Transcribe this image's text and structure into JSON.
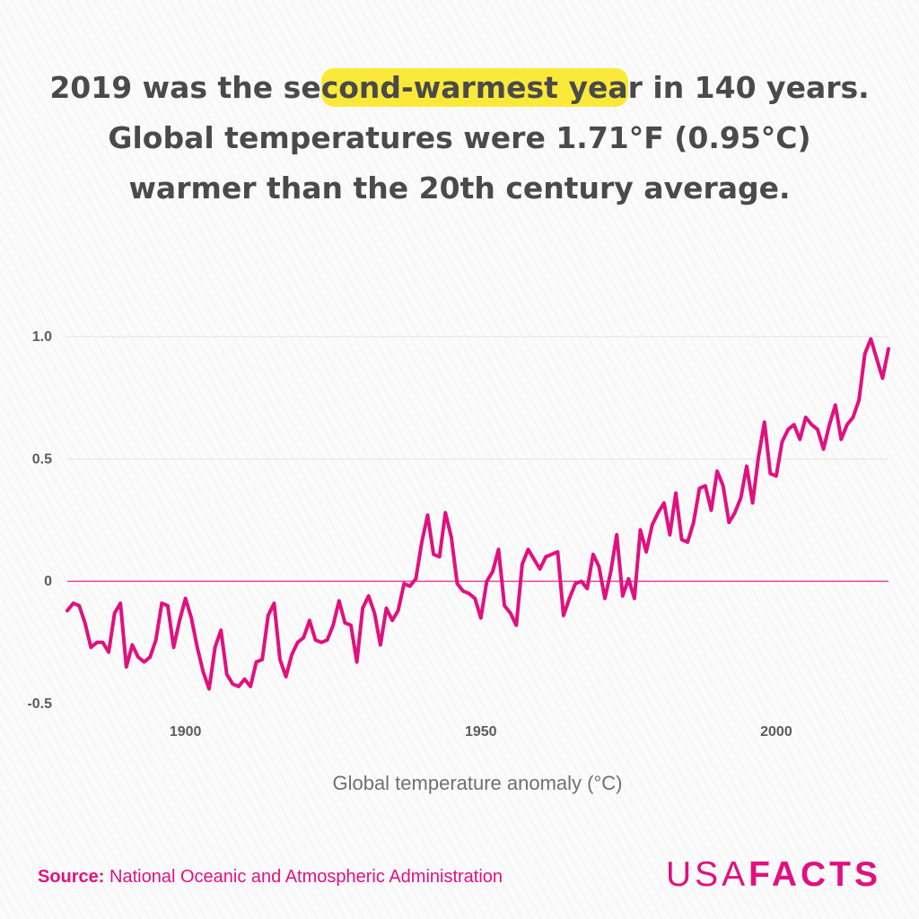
{
  "headline": {
    "line1_pre": "2019 was the se",
    "line1_highlight": "cond-warmest yea",
    "line1_post": "r in 140 years.",
    "line2": "Global temperatures were 1.71°F (0.95°C)",
    "line3": "warmer than the 20th century average."
  },
  "colors": {
    "series": "#e0117f",
    "highlight": "#fbe93a",
    "text": "#4a4a4a",
    "grid": "#e2e2e2"
  },
  "chart_data": {
    "type": "line",
    "xlabel": "Global temperature anomaly (°C)",
    "ylabel": "",
    "xlim": [
      1880,
      2019
    ],
    "ylim": [
      -0.5,
      1.0
    ],
    "y_ticks": [
      {
        "value": 1.0,
        "label": "1.0"
      },
      {
        "value": 0.5,
        "label": "0.5"
      },
      {
        "value": 0,
        "label": "0"
      },
      {
        "value": -0.5,
        "label": "-0.5"
      }
    ],
    "x_ticks": [
      {
        "value": 1900,
        "label": "1900"
      },
      {
        "value": 1950,
        "label": "1950"
      },
      {
        "value": 2000,
        "label": "2000"
      }
    ],
    "grid": true,
    "zero_line": true,
    "series": [
      {
        "x": [
          1880,
          1881,
          1882,
          1883,
          1884,
          1885,
          1886,
          1887,
          1888,
          1889,
          1890,
          1891,
          1892,
          1893,
          1894,
          1895,
          1896,
          1897,
          1898,
          1899,
          1900,
          1901,
          1902,
          1903,
          1904,
          1905,
          1906,
          1907,
          1908,
          1909,
          1910,
          1911,
          1912,
          1913,
          1914,
          1915,
          1916,
          1917,
          1918,
          1919,
          1920,
          1921,
          1922,
          1923,
          1924,
          1925,
          1926,
          1927,
          1928,
          1929,
          1930,
          1931,
          1932,
          1933,
          1934,
          1935,
          1936,
          1937,
          1938,
          1939,
          1940,
          1941,
          1942,
          1943,
          1944,
          1945,
          1946,
          1947,
          1948,
          1949,
          1950,
          1951,
          1952,
          1953,
          1954,
          1955,
          1956,
          1957,
          1958,
          1959,
          1960,
          1961,
          1962,
          1963,
          1964,
          1965,
          1966,
          1967,
          1968,
          1969,
          1970,
          1971,
          1972,
          1973,
          1974,
          1975,
          1976,
          1977,
          1978,
          1979,
          1980,
          1981,
          1982,
          1983,
          1984,
          1985,
          1986,
          1987,
          1988,
          1989,
          1990,
          1991,
          1992,
          1993,
          1994,
          1995,
          1996,
          1997,
          1998,
          1999,
          2000,
          2001,
          2002,
          2003,
          2004,
          2005,
          2006,
          2007,
          2008,
          2009,
          2010,
          2011,
          2012,
          2013,
          2014,
          2015,
          2016,
          2017,
          2018,
          2019
        ],
        "values": [
          -0.12,
          -0.09,
          -0.1,
          -0.17,
          -0.27,
          -0.25,
          -0.25,
          -0.29,
          -0.13,
          -0.09,
          -0.35,
          -0.26,
          -0.31,
          -0.33,
          -0.31,
          -0.24,
          -0.09,
          -0.1,
          -0.27,
          -0.16,
          -0.07,
          -0.15,
          -0.27,
          -0.37,
          -0.44,
          -0.27,
          -0.2,
          -0.38,
          -0.42,
          -0.43,
          -0.4,
          -0.43,
          -0.33,
          -0.32,
          -0.14,
          -0.09,
          -0.32,
          -0.39,
          -0.3,
          -0.25,
          -0.23,
          -0.16,
          -0.24,
          -0.25,
          -0.24,
          -0.18,
          -0.08,
          -0.17,
          -0.18,
          -0.33,
          -0.11,
          -0.06,
          -0.13,
          -0.26,
          -0.11,
          -0.16,
          -0.12,
          -0.01,
          -0.02,
          0.01,
          0.16,
          0.27,
          0.11,
          0.1,
          0.28,
          0.18,
          -0.01,
          -0.04,
          -0.05,
          -0.07,
          -0.15,
          0.0,
          0.04,
          0.13,
          -0.1,
          -0.13,
          -0.18,
          0.07,
          0.13,
          0.09,
          0.05,
          0.1,
          0.11,
          0.12,
          -0.14,
          -0.07,
          -0.01,
          0.0,
          -0.03,
          0.11,
          0.06,
          -0.07,
          0.04,
          0.19,
          -0.06,
          0.01,
          -0.07,
          0.21,
          0.12,
          0.23,
          0.28,
          0.32,
          0.19,
          0.36,
          0.17,
          0.16,
          0.24,
          0.38,
          0.39,
          0.29,
          0.45,
          0.39,
          0.24,
          0.28,
          0.34,
          0.47,
          0.32,
          0.51,
          0.65,
          0.44,
          0.43,
          0.57,
          0.62,
          0.64,
          0.58,
          0.67,
          0.64,
          0.62,
          0.54,
          0.64,
          0.72,
          0.58,
          0.64,
          0.67,
          0.74,
          0.93,
          0.99,
          0.91,
          0.83,
          0.95
        ]
      }
    ]
  },
  "source": {
    "label": "Source:",
    "text": "National Oceanic and Atmospheric Administration"
  },
  "logo": {
    "light": "USA",
    "bold": "FACTS"
  }
}
